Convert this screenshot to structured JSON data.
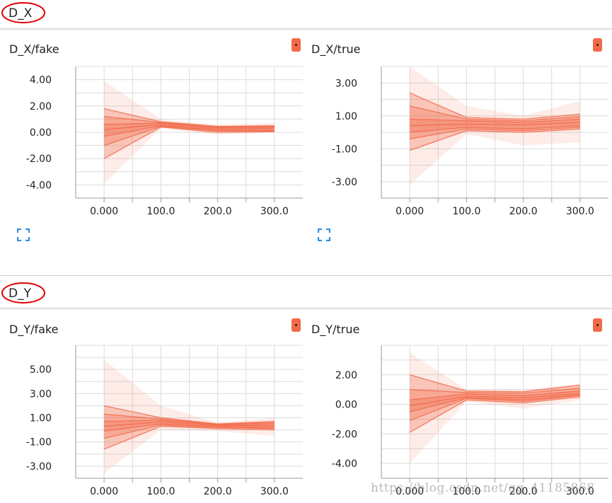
{
  "sections": [
    {
      "title": "D_X",
      "charts": [
        {
          "title": "D_X/fake",
          "xticks": [
            "0.000",
            "100.0",
            "200.0",
            "300.0"
          ],
          "yticks": [
            "4.00",
            "2.00",
            "0.00",
            "-2.00",
            "-4.00"
          ]
        },
        {
          "title": "D_X/true",
          "xticks": [
            "0.000",
            "100.0",
            "200.0",
            "300.0"
          ],
          "yticks": [
            "3.00",
            "1.00",
            "-1.00",
            "-3.00"
          ]
        }
      ]
    },
    {
      "title": "D_Y",
      "charts": [
        {
          "title": "D_Y/fake",
          "xticks": [
            "0.000",
            "100.0",
            "200.0",
            "300.0"
          ],
          "yticks": [
            "5.00",
            "3.00",
            "1.00",
            "-1.00",
            "-3.00"
          ]
        },
        {
          "title": "D_Y/true",
          "xticks": [
            "0.000",
            "100.0",
            "200.0",
            "300.0"
          ],
          "yticks": [
            "2.00",
            "0.00",
            "-2.00",
            "-4.00"
          ]
        }
      ]
    }
  ],
  "watermark": "https://blog.csdn.net/qq_41185868",
  "colors": {
    "series": "#f26a4a",
    "annotation_circle": "#e00000",
    "expand_icon": "#2e8fe3"
  },
  "chart_data": [
    {
      "type": "area",
      "title": "D_X/fake",
      "x": [
        0,
        100,
        200,
        300
      ],
      "xlim": [
        -50,
        350
      ],
      "ylim": [
        -5,
        5
      ],
      "grid": true,
      "bands": [
        {
          "lower": [
            -3.9,
            0.3,
            -0.2,
            0.0
          ],
          "upper": [
            3.9,
            1.0,
            0.6,
            0.7
          ]
        },
        {
          "lower": [
            -2.0,
            0.4,
            0.0,
            0.05
          ],
          "upper": [
            1.8,
            0.8,
            0.45,
            0.5
          ]
        },
        {
          "lower": [
            -1.0,
            0.45,
            0.1,
            0.1
          ],
          "upper": [
            1.2,
            0.75,
            0.4,
            0.45
          ]
        },
        {
          "lower": [
            -0.3,
            0.5,
            0.15,
            0.15
          ],
          "upper": [
            0.6,
            0.7,
            0.35,
            0.4
          ]
        }
      ],
      "lines": [
        [
          1.8,
          0.8,
          0.45,
          0.5
        ],
        [
          1.2,
          0.75,
          0.4,
          0.45
        ],
        [
          0.6,
          0.7,
          0.35,
          0.4
        ],
        [
          0.2,
          0.6,
          0.25,
          0.3
        ],
        [
          -0.3,
          0.5,
          0.15,
          0.15
        ],
        [
          -1.0,
          0.45,
          0.1,
          0.1
        ],
        [
          -2.0,
          0.4,
          0.0,
          0.05
        ]
      ]
    },
    {
      "type": "area",
      "title": "D_X/true",
      "x": [
        0,
        100,
        200,
        300
      ],
      "xlim": [
        -50,
        350
      ],
      "ylim": [
        -4,
        4
      ],
      "grid": true,
      "bands": [
        {
          "lower": [
            -3.2,
            -0.1,
            -0.8,
            -0.6
          ],
          "upper": [
            4.0,
            1.6,
            1.0,
            1.9
          ]
        },
        {
          "lower": [
            -1.1,
            0.1,
            0.0,
            0.2
          ],
          "upper": [
            2.4,
            0.9,
            0.8,
            1.1
          ]
        },
        {
          "lower": [
            -0.4,
            0.2,
            0.1,
            0.3
          ],
          "upper": [
            1.6,
            0.8,
            0.7,
            0.95
          ]
        },
        {
          "lower": [
            0.0,
            0.3,
            0.2,
            0.4
          ],
          "upper": [
            0.8,
            0.7,
            0.6,
            0.8
          ]
        }
      ],
      "lines": [
        [
          2.4,
          0.9,
          0.8,
          1.1
        ],
        [
          1.6,
          0.8,
          0.7,
          0.95
        ],
        [
          0.8,
          0.7,
          0.6,
          0.8
        ],
        [
          0.4,
          0.5,
          0.45,
          0.6
        ],
        [
          0.0,
          0.3,
          0.2,
          0.4
        ],
        [
          -0.4,
          0.2,
          0.1,
          0.3
        ],
        [
          -1.1,
          0.1,
          0.0,
          0.2
        ]
      ]
    },
    {
      "type": "area",
      "title": "D_Y/fake",
      "x": [
        0,
        100,
        200,
        300
      ],
      "xlim": [
        -50,
        350
      ],
      "ylim": [
        -4,
        7
      ],
      "grid": true,
      "bands": [
        {
          "lower": [
            -3.6,
            0.0,
            -0.1,
            -0.5
          ],
          "upper": [
            5.8,
            2.0,
            0.6,
            1.0
          ]
        },
        {
          "lower": [
            -1.6,
            0.3,
            0.1,
            0.0
          ],
          "upper": [
            2.0,
            1.0,
            0.5,
            0.7
          ]
        },
        {
          "lower": [
            -0.7,
            0.4,
            0.2,
            0.1
          ],
          "upper": [
            1.3,
            0.9,
            0.45,
            0.6
          ]
        },
        {
          "lower": [
            -0.1,
            0.5,
            0.25,
            0.2
          ],
          "upper": [
            0.7,
            0.8,
            0.4,
            0.5
          ]
        }
      ],
      "lines": [
        [
          2.0,
          1.0,
          0.5,
          0.7
        ],
        [
          1.3,
          0.9,
          0.45,
          0.6
        ],
        [
          0.7,
          0.8,
          0.4,
          0.5
        ],
        [
          0.3,
          0.65,
          0.35,
          0.35
        ],
        [
          -0.1,
          0.5,
          0.25,
          0.2
        ],
        [
          -0.7,
          0.4,
          0.2,
          0.1
        ],
        [
          -1.6,
          0.3,
          0.1,
          0.0
        ]
      ]
    },
    {
      "type": "area",
      "title": "D_Y/true",
      "x": [
        0,
        100,
        200,
        300
      ],
      "xlim": [
        -50,
        350
      ],
      "ylim": [
        -5,
        4
      ],
      "grid": true,
      "bands": [
        {
          "lower": [
            -4.0,
            0.2,
            -0.3,
            0.3
          ],
          "upper": [
            3.5,
            1.0,
            1.0,
            1.4
          ]
        },
        {
          "lower": [
            -1.9,
            0.3,
            0.1,
            0.5
          ],
          "upper": [
            2.0,
            0.9,
            0.85,
            1.3
          ]
        },
        {
          "lower": [
            -1.1,
            0.4,
            0.2,
            0.6
          ],
          "upper": [
            1.0,
            0.8,
            0.75,
            1.1
          ]
        },
        {
          "lower": [
            -0.5,
            0.45,
            0.3,
            0.65
          ],
          "upper": [
            0.3,
            0.7,
            0.6,
            0.9
          ]
        }
      ],
      "lines": [
        [
          2.0,
          0.9,
          0.85,
          1.3
        ],
        [
          1.0,
          0.8,
          0.75,
          1.1
        ],
        [
          0.3,
          0.7,
          0.6,
          0.9
        ],
        [
          -0.1,
          0.55,
          0.45,
          0.75
        ],
        [
          -0.5,
          0.45,
          0.3,
          0.65
        ],
        [
          -1.1,
          0.4,
          0.2,
          0.6
        ],
        [
          -1.9,
          0.3,
          0.1,
          0.5
        ]
      ]
    }
  ]
}
